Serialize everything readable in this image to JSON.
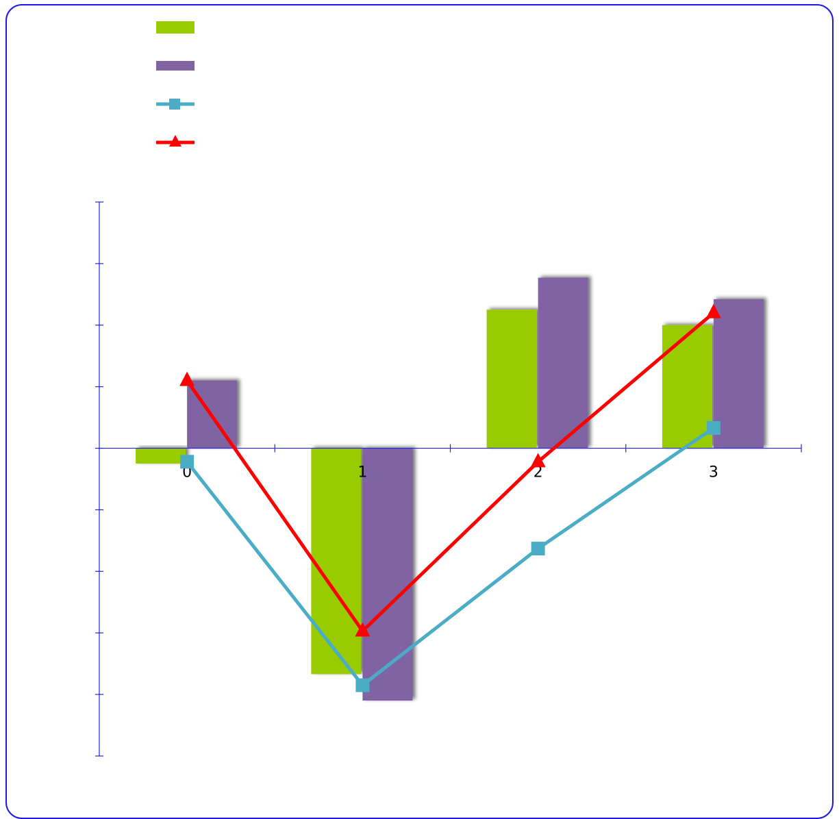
{
  "chart_data": {
    "type": "bar",
    "title": "",
    "xlabel": "",
    "ylabel": "",
    "categories": [
      "0",
      "1",
      "2",
      "3"
    ],
    "ylim": [
      -5,
      4
    ],
    "y_tick_step": 1,
    "grid": false,
    "legend_position": "top-left",
    "series": [
      {
        "kind": "bar",
        "color": "#99cc00",
        "values": [
          -0.25,
          -3.67,
          2.25,
          2.0
        ]
      },
      {
        "kind": "bar",
        "color": "#8064a2",
        "values": [
          1.1,
          -4.1,
          2.77,
          2.42
        ]
      },
      {
        "kind": "line",
        "marker": "square",
        "color": "#4bacc6",
        "values": [
          -0.22,
          -3.85,
          -1.63,
          0.33
        ]
      },
      {
        "kind": "line",
        "marker": "triangle",
        "color": "#ff0000",
        "values": [
          1.1,
          -2.97,
          -0.22,
          2.2
        ]
      }
    ]
  }
}
